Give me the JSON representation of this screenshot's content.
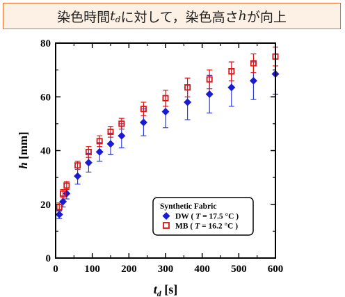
{
  "banner": {
    "part1": "染色時間",
    "td_main": "t",
    "td_sub": "d",
    "part2": "に対して，染色高さ",
    "h": "h",
    "part3": "が向上"
  },
  "chart_data": {
    "type": "scatter",
    "xlabel_main": "t",
    "xlabel_sub": "d",
    "xlabel_unit": " [s]",
    "ylabel_main": "h",
    "ylabel_unit": " [mm]",
    "xlim": [
      0,
      600
    ],
    "ylim": [
      0,
      80
    ],
    "xticks": [
      0,
      100,
      200,
      300,
      400,
      500,
      600
    ],
    "yticks": [
      0,
      20,
      40,
      60,
      80
    ],
    "legend": {
      "title": "Synthetic Fabric",
      "entries": [
        {
          "label": "DW (",
          "T_text": "T",
          "temp": " = 17.5 °C )"
        },
        {
          "label": "MB (",
          "T_text": "T",
          "temp": " = 16.2 °C )"
        }
      ],
      "placement": "lower-right"
    },
    "series": [
      {
        "name": "DW",
        "marker": "diamond",
        "color": "#1a1ad0",
        "errcolor": "#2f3cd8",
        "points": [
          {
            "x": 10,
            "y": 16.2,
            "err": 1.5
          },
          {
            "x": 20,
            "y": 21.0,
            "err": 2.0
          },
          {
            "x": 30,
            "y": 24.0,
            "err": 2.0
          },
          {
            "x": 60,
            "y": 30.5,
            "err": 3.0
          },
          {
            "x": 90,
            "y": 35.5,
            "err": 3.5
          },
          {
            "x": 120,
            "y": 39.5,
            "err": 3.5
          },
          {
            "x": 150,
            "y": 42.5,
            "err": 4.0
          },
          {
            "x": 180,
            "y": 45.5,
            "err": 4.5
          },
          {
            "x": 240,
            "y": 50.5,
            "err": 5.0
          },
          {
            "x": 300,
            "y": 54.5,
            "err": 6.0
          },
          {
            "x": 360,
            "y": 58.0,
            "err": 6.5
          },
          {
            "x": 420,
            "y": 61.0,
            "err": 7.0
          },
          {
            "x": 480,
            "y": 63.5,
            "err": 7.0
          },
          {
            "x": 540,
            "y": 66.0,
            "err": 7.0
          },
          {
            "x": 600,
            "y": 68.5,
            "err": 7.5
          }
        ]
      },
      {
        "name": "MB",
        "marker": "open-square",
        "color": "#e01010",
        "errcolor": "#e01010",
        "points": [
          {
            "x": 10,
            "y": 19.0,
            "err": 1.5
          },
          {
            "x": 20,
            "y": 24.0,
            "err": 1.5
          },
          {
            "x": 30,
            "y": 27.0,
            "err": 1.5
          },
          {
            "x": 60,
            "y": 34.5,
            "err": 1.5
          },
          {
            "x": 90,
            "y": 39.5,
            "err": 2.0
          },
          {
            "x": 120,
            "y": 43.5,
            "err": 2.0
          },
          {
            "x": 150,
            "y": 47.0,
            "err": 2.0
          },
          {
            "x": 180,
            "y": 50.0,
            "err": 2.0
          },
          {
            "x": 240,
            "y": 55.5,
            "err": 2.5
          },
          {
            "x": 300,
            "y": 59.5,
            "err": 3.0
          },
          {
            "x": 360,
            "y": 63.5,
            "err": 3.5
          },
          {
            "x": 420,
            "y": 66.5,
            "err": 3.5
          },
          {
            "x": 480,
            "y": 69.5,
            "err": 3.5
          },
          {
            "x": 540,
            "y": 72.5,
            "err": 3.5
          },
          {
            "x": 600,
            "y": 75.0,
            "err": 3.5
          }
        ]
      }
    ]
  }
}
